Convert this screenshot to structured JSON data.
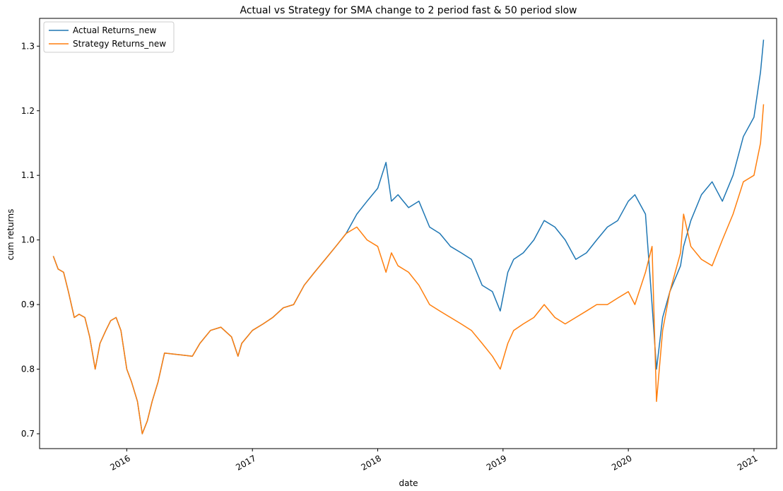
{
  "chart_data": {
    "type": "line",
    "title": "Actual vs Strategy for SMA change to 2 period fast & 50 period slow",
    "xlabel": "date",
    "ylabel": "cum returns",
    "x_range": [
      "2015-04-22",
      "2021-03-08"
    ],
    "ylim": [
      0.677,
      1.343
    ],
    "x_ticks": [
      "2016",
      "2017",
      "2018",
      "2019",
      "2020",
      "2021"
    ],
    "x_tick_dates": [
      "2016-01-01",
      "2017-01-01",
      "2018-01-01",
      "2019-01-01",
      "2020-01-01",
      "2021-01-01"
    ],
    "y_ticks": [
      "0.7",
      "0.8",
      "0.9",
      "1.0",
      "1.1",
      "1.2",
      "1.3"
    ],
    "legend_position": "top-left",
    "grid": false,
    "series": [
      {
        "name": "Actual Returns_new",
        "color": "#1f77b4",
        "x": [
          "2015-06-01",
          "2015-06-15",
          "2015-07-01",
          "2015-07-15",
          "2015-08-01",
          "2015-08-15",
          "2015-09-01",
          "2015-09-15",
          "2015-10-01",
          "2015-10-15",
          "2015-11-01",
          "2015-11-15",
          "2015-12-01",
          "2015-12-15",
          "2016-01-01",
          "2016-01-15",
          "2016-02-01",
          "2016-02-15",
          "2016-03-01",
          "2016-03-15",
          "2016-04-01",
          "2016-04-20",
          "2016-07-10",
          "2016-08-01",
          "2016-09-01",
          "2016-10-01",
          "2016-11-01",
          "2016-11-20",
          "2016-12-01",
          "2017-01-01",
          "2017-02-01",
          "2017-03-01",
          "2017-04-01",
          "2017-05-01",
          "2017-06-01",
          "2017-07-01",
          "2017-08-01",
          "2017-09-01",
          "2017-10-01",
          "2017-11-01",
          "2017-12-01",
          "2018-01-01",
          "2018-01-25",
          "2018-02-10",
          "2018-03-01",
          "2018-04-01",
          "2018-05-01",
          "2018-06-01",
          "2018-07-01",
          "2018-08-01",
          "2018-09-01",
          "2018-10-01",
          "2018-11-01",
          "2018-12-01",
          "2018-12-24",
          "2019-01-15",
          "2019-02-01",
          "2019-03-01",
          "2019-04-01",
          "2019-05-01",
          "2019-06-01",
          "2019-07-01",
          "2019-08-01",
          "2019-09-01",
          "2019-10-01",
          "2019-11-01",
          "2019-12-01",
          "2020-01-01",
          "2020-01-20",
          "2020-02-20",
          "2020-03-10",
          "2020-03-23",
          "2020-04-10",
          "2020-05-01",
          "2020-06-01",
          "2020-06-10",
          "2020-07-01",
          "2020-08-01",
          "2020-09-01",
          "2020-10-01",
          "2020-11-01",
          "2020-12-01",
          "2021-01-01",
          "2021-01-20",
          "2021-01-29"
        ],
        "values": [
          0.975,
          0.955,
          0.95,
          0.92,
          0.88,
          0.885,
          0.88,
          0.85,
          0.8,
          0.84,
          0.86,
          0.875,
          0.88,
          0.86,
          0.8,
          0.78,
          0.75,
          0.7,
          0.72,
          0.75,
          0.78,
          0.825,
          0.82,
          0.84,
          0.86,
          0.865,
          0.85,
          0.82,
          0.84,
          0.86,
          0.87,
          0.88,
          0.895,
          0.9,
          0.93,
          0.95,
          0.97,
          0.99,
          1.01,
          1.04,
          1.06,
          1.08,
          1.12,
          1.06,
          1.07,
          1.05,
          1.06,
          1.02,
          1.01,
          0.99,
          0.98,
          0.97,
          0.93,
          0.92,
          0.89,
          0.95,
          0.97,
          0.98,
          1.0,
          1.03,
          1.02,
          1.0,
          0.97,
          0.98,
          1.0,
          1.02,
          1.03,
          1.06,
          1.07,
          1.04,
          0.9,
          0.8,
          0.88,
          0.92,
          0.96,
          0.99,
          1.03,
          1.07,
          1.09,
          1.06,
          1.1,
          1.16,
          1.19,
          1.26,
          1.31
        ]
      },
      {
        "name": "Strategy Returns_new",
        "color": "#ff7f0e",
        "x": [
          "2015-06-01",
          "2015-06-15",
          "2015-07-01",
          "2015-07-15",
          "2015-08-01",
          "2015-08-15",
          "2015-09-01",
          "2015-09-15",
          "2015-10-01",
          "2015-10-15",
          "2015-11-01",
          "2015-11-15",
          "2015-12-01",
          "2015-12-15",
          "2016-01-01",
          "2016-01-15",
          "2016-02-01",
          "2016-02-15",
          "2016-03-01",
          "2016-03-15",
          "2016-04-01",
          "2016-04-20",
          "2016-07-10",
          "2016-08-01",
          "2016-09-01",
          "2016-10-01",
          "2016-11-01",
          "2016-11-20",
          "2016-12-01",
          "2017-01-01",
          "2017-02-01",
          "2017-03-01",
          "2017-04-01",
          "2017-05-01",
          "2017-06-01",
          "2017-07-01",
          "2017-08-01",
          "2017-09-01",
          "2017-10-01",
          "2017-11-01",
          "2017-12-01",
          "2018-01-01",
          "2018-01-25",
          "2018-02-10",
          "2018-03-01",
          "2018-04-01",
          "2018-05-01",
          "2018-06-01",
          "2018-07-01",
          "2018-08-01",
          "2018-09-01",
          "2018-10-01",
          "2018-11-01",
          "2018-12-01",
          "2018-12-24",
          "2019-01-15",
          "2019-02-01",
          "2019-03-01",
          "2019-04-01",
          "2019-05-01",
          "2019-06-01",
          "2019-07-01",
          "2019-08-01",
          "2019-09-01",
          "2019-10-01",
          "2019-11-01",
          "2019-12-01",
          "2020-01-01",
          "2020-01-20",
          "2020-02-20",
          "2020-03-10",
          "2020-03-23",
          "2020-04-10",
          "2020-05-01",
          "2020-06-01",
          "2020-06-10",
          "2020-07-01",
          "2020-08-01",
          "2020-09-01",
          "2020-10-01",
          "2020-11-01",
          "2020-12-01",
          "2021-01-01",
          "2021-01-20",
          "2021-01-29"
        ],
        "values": [
          0.975,
          0.955,
          0.95,
          0.92,
          0.88,
          0.885,
          0.88,
          0.85,
          0.8,
          0.84,
          0.86,
          0.875,
          0.88,
          0.86,
          0.8,
          0.78,
          0.75,
          0.7,
          0.72,
          0.75,
          0.78,
          0.825,
          0.82,
          0.84,
          0.86,
          0.865,
          0.85,
          0.82,
          0.84,
          0.86,
          0.87,
          0.88,
          0.895,
          0.9,
          0.93,
          0.95,
          0.97,
          0.99,
          1.01,
          1.02,
          1.0,
          0.99,
          0.95,
          0.98,
          0.96,
          0.95,
          0.93,
          0.9,
          0.89,
          0.88,
          0.87,
          0.86,
          0.84,
          0.82,
          0.8,
          0.84,
          0.86,
          0.87,
          0.88,
          0.9,
          0.88,
          0.87,
          0.88,
          0.89,
          0.9,
          0.9,
          0.91,
          0.92,
          0.9,
          0.95,
          0.99,
          0.75,
          0.86,
          0.92,
          0.98,
          1.04,
          0.99,
          0.97,
          0.96,
          1.0,
          1.04,
          1.09,
          1.1,
          1.15,
          1.21
        ]
      }
    ]
  }
}
